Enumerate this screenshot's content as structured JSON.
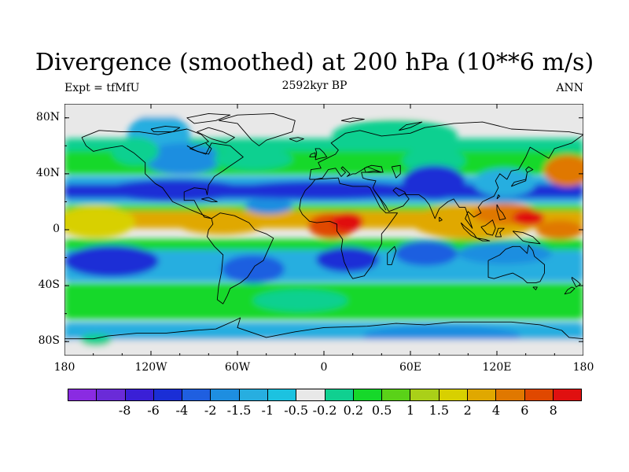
{
  "title": "Divergence (smoothed) at 200 hPa (10**6 m/s)",
  "subtitle_left": "Expt = tfMfU",
  "subtitle_center": "2592kyr BP",
  "subtitle_right": "ANN",
  "y_axis": {
    "ticks": [
      {
        "label": "80N",
        "lat": 80
      },
      {
        "label": "40N",
        "lat": 40
      },
      {
        "label": "0",
        "lat": 0
      },
      {
        "label": "40S",
        "lat": -40
      },
      {
        "label": "80S",
        "lat": -80
      }
    ]
  },
  "x_axis": {
    "ticks": [
      {
        "label": "180",
        "lon": -180
      },
      {
        "label": "120W",
        "lon": -120
      },
      {
        "label": "60W",
        "lon": -60
      },
      {
        "label": "0",
        "lon": 0
      },
      {
        "label": "60E",
        "lon": 60
      },
      {
        "label": "120E",
        "lon": 120
      },
      {
        "label": "180",
        "lon": 180
      }
    ]
  },
  "colorbar": {
    "colors": [
      "#8a2be2",
      "#6a2bd8",
      "#3a1fd6",
      "#1a2ed6",
      "#1f5fe0",
      "#1e8ee0",
      "#27aee0",
      "#1cc2e0",
      "#e8e8e8",
      "#10d090",
      "#16d82a",
      "#5ad218",
      "#aad018",
      "#d8d000",
      "#e0a800",
      "#e07800",
      "#e04800",
      "#e01010"
    ],
    "labels": [
      "-8",
      "-6",
      "-4",
      "-2",
      "-1.5",
      "-1",
      "-0.5",
      "-0.2",
      "0.2",
      "0.5",
      "1",
      "1.5",
      "2",
      "4",
      "6",
      "8"
    ]
  },
  "colors": {
    "neutral": "#e8e8e8",
    "coast": "#000000"
  }
}
